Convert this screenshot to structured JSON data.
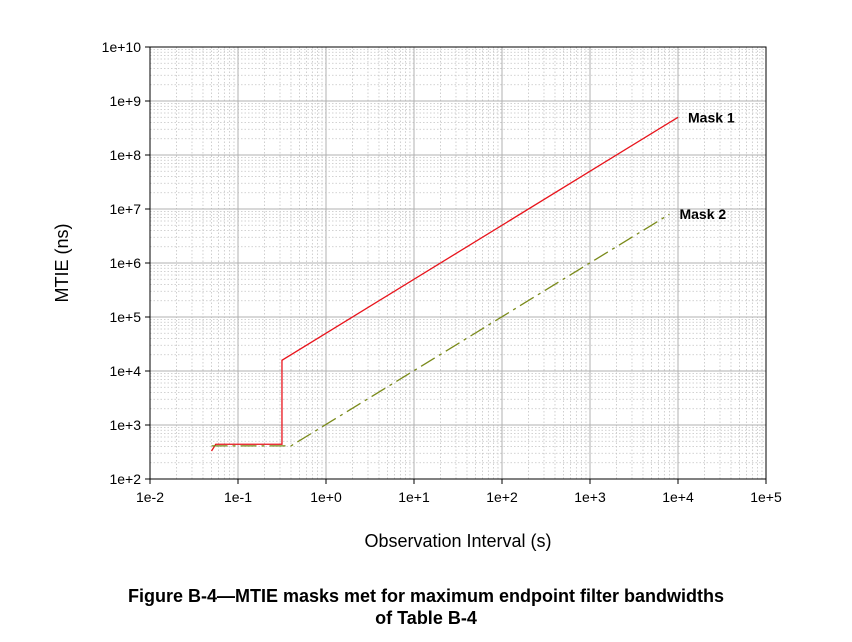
{
  "chart_data": {
    "type": "line",
    "title": "",
    "xlabel": "Observation Interval (s)",
    "ylabel": "MTIE (ns)",
    "x_scale": "log",
    "y_scale": "log",
    "xlim": [
      0.01,
      100000
    ],
    "ylim": [
      100,
      10000000000
    ],
    "x_ticks": [
      "1e-2",
      "1e-1",
      "1e+0",
      "1e+1",
      "1e+2",
      "1e+3",
      "1e+4",
      "1e+5"
    ],
    "y_ticks": [
      "1e+2",
      "1e+3",
      "1e+4",
      "1e+5",
      "1e+6",
      "1e+7",
      "1e+8",
      "1e+9",
      "1e+10"
    ],
    "grid": true,
    "legend": "none",
    "series": [
      {
        "name": "Mask 1",
        "color": "#e8141c",
        "dash": "solid",
        "x": [
          0.05,
          0.0559,
          0.316,
          0.316,
          10000
        ],
        "y": [
          330,
          440,
          440,
          15800,
          500000000
        ]
      },
      {
        "name": "Mask 2",
        "color": "#7a8a1a",
        "dash": "long-dash-dot",
        "x": [
          0.05,
          0.4,
          8000
        ],
        "y": [
          410,
          410,
          8000000
        ]
      }
    ]
  },
  "caption": {
    "line1": "Figure B-4—MTIE masks met for maximum endpoint filter bandwidths",
    "line2": "of Table B-4"
  }
}
